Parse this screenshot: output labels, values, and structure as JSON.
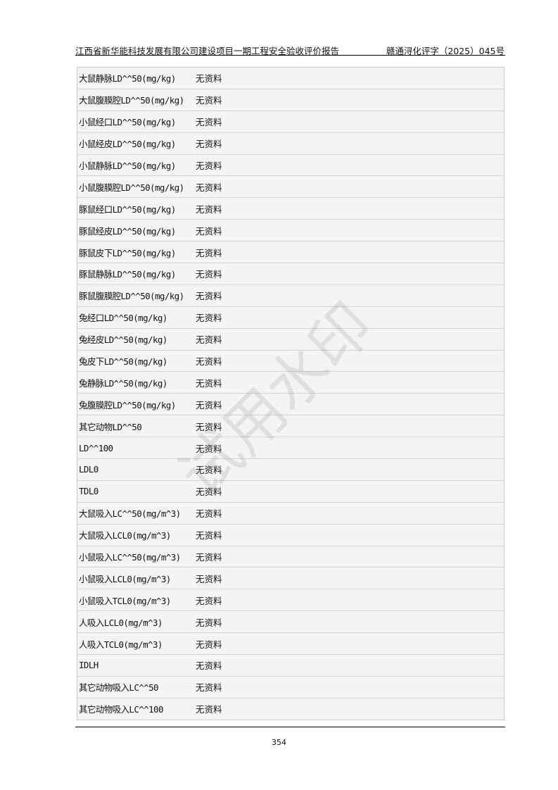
{
  "header": {
    "title": "江西省新华能科技发展有限公司建设项目一期工程安全验收评价报告",
    "doc_number": "赣通浔化评字（2025）045号"
  },
  "table": {
    "rows": [
      {
        "item": "大鼠静脉LD^^50(mg/kg)",
        "value": "无资料"
      },
      {
        "item": "大鼠腹膜腔LD^^50(mg/kg)",
        "value": "无资料"
      },
      {
        "item": "小鼠经口LD^^50(mg/kg)",
        "value": "无资料"
      },
      {
        "item": "小鼠经皮LD^^50(mg/kg)",
        "value": "无资料"
      },
      {
        "item": "小鼠静脉LD^^50(mg/kg)",
        "value": "无资料"
      },
      {
        "item": "小鼠腹膜腔LD^^50(mg/kg)",
        "value": "无资料"
      },
      {
        "item": "豚鼠经口LD^^50(mg/kg)",
        "value": "无资料"
      },
      {
        "item": "豚鼠经皮LD^^50(mg/kg)",
        "value": "无资料"
      },
      {
        "item": "豚鼠皮下LD^^50(mg/kg)",
        "value": "无资料"
      },
      {
        "item": "豚鼠静脉LD^^50(mg/kg)",
        "value": "无资料"
      },
      {
        "item": "豚鼠腹膜腔LD^^50(mg/kg)",
        "value": "无资料"
      },
      {
        "item": "兔经口LD^^50(mg/kg)",
        "value": "无资料"
      },
      {
        "item": "兔经皮LD^^50(mg/kg)",
        "value": "无资料"
      },
      {
        "item": "兔皮下LD^^50(mg/kg)",
        "value": "无资料"
      },
      {
        "item": "兔静脉LD^^50(mg/kg)",
        "value": "无资料"
      },
      {
        "item": "兔腹膜腔LD^^50(mg/kg)",
        "value": "无资料"
      },
      {
        "item": "其它动物LD^^50",
        "value": "无资料"
      },
      {
        "item": "LD^^100",
        "value": "无资料"
      },
      {
        "item": "LDL0",
        "value": "无资料"
      },
      {
        "item": "TDL0",
        "value": "无资料"
      },
      {
        "item": "大鼠吸入LC^^50(mg/m^3)",
        "value": "无资料"
      },
      {
        "item": "大鼠吸入LCL0(mg/m^3)",
        "value": "无资料"
      },
      {
        "item": "小鼠吸入LC^^50(mg/m^3)",
        "value": "无资料"
      },
      {
        "item": "小鼠吸入LCL0(mg/m^3)",
        "value": "无资料"
      },
      {
        "item": "小鼠吸入TCL0(mg/m^3)",
        "value": "无资料"
      },
      {
        "item": "人吸入LCL0(mg/m^3)",
        "value": "无资料"
      },
      {
        "item": "人吸入TCL0(mg/m^3)",
        "value": "无资料"
      },
      {
        "item": "IDLH",
        "value": "无资料"
      },
      {
        "item": "其它动物吸入LC^^50",
        "value": "无资料"
      },
      {
        "item": "其它动物吸入LC^^100",
        "value": "无资料"
      }
    ]
  },
  "watermark": "试用水印",
  "footer": {
    "page_number": "354"
  }
}
